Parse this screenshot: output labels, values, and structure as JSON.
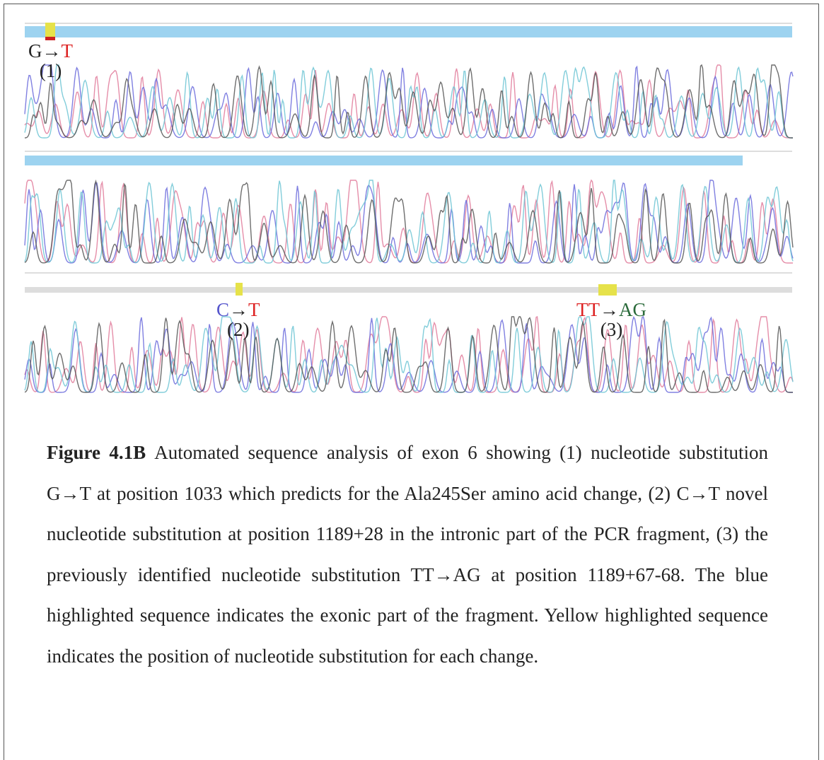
{
  "mutations": [
    {
      "from": "G",
      "arrow": "→",
      "to": "T",
      "number": "(1)"
    },
    {
      "from": "C",
      "arrow": "→",
      "to": "T",
      "number": "(2)"
    },
    {
      "from": "TT",
      "arrow": "→",
      "to": "AG",
      "number": "(3)"
    }
  ],
  "caption": {
    "label": "Figure 4.1B",
    "text": "Automated sequence analysis of exon 6 showing (1) nucleotide substitution G→T at position 1033 which predicts for the Ala245Ser amino acid change, (2) C→T novel nucleotide substitution at position 1189+28 in the intronic part of the PCR fragment, (3) the previously identified nucleotide substitution TT→AG at position 1189+67-68.  The blue highlighted sequence indicates the exonic part of the fragment.  Yellow highlighted sequence indicates the position of nucleotide substitution for each change."
  }
}
